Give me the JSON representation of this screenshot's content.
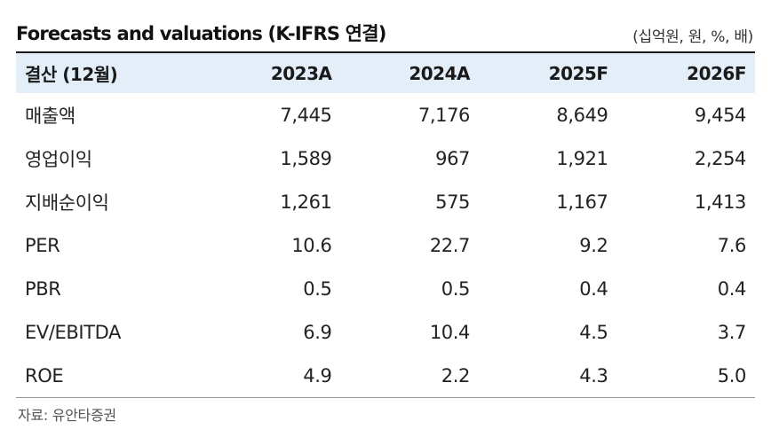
{
  "header": {
    "title": "Forecasts and valuations (K-IFRS 연결)",
    "unit": "(십억원, 원, %, 배)"
  },
  "table": {
    "columns": [
      "결산 (12월)",
      "2023A",
      "2024A",
      "2025F",
      "2026F"
    ],
    "rows": [
      {
        "label": "매출액",
        "values": [
          "7,445",
          "7,176",
          "8,649",
          "9,454"
        ]
      },
      {
        "label": "영업이익",
        "values": [
          "1,589",
          "967",
          "1,921",
          "2,254"
        ]
      },
      {
        "label": "지배순이익",
        "values": [
          "1,261",
          "575",
          "1,167",
          "1,413"
        ]
      },
      {
        "label": "PER",
        "values": [
          "10.6",
          "22.7",
          "9.2",
          "7.6"
        ]
      },
      {
        "label": "PBR",
        "values": [
          "0.5",
          "0.5",
          "0.4",
          "0.4"
        ]
      },
      {
        "label": "EV/EBITDA",
        "values": [
          "6.9",
          "10.4",
          "4.5",
          "3.7"
        ]
      },
      {
        "label": "ROE",
        "values": [
          "4.9",
          "2.2",
          "4.3",
          "5.0"
        ]
      }
    ]
  },
  "footer": {
    "source": "자료: 유안타증권"
  },
  "colors": {
    "header_bg": "#e3eef9",
    "rule": "#1a1a1a"
  }
}
